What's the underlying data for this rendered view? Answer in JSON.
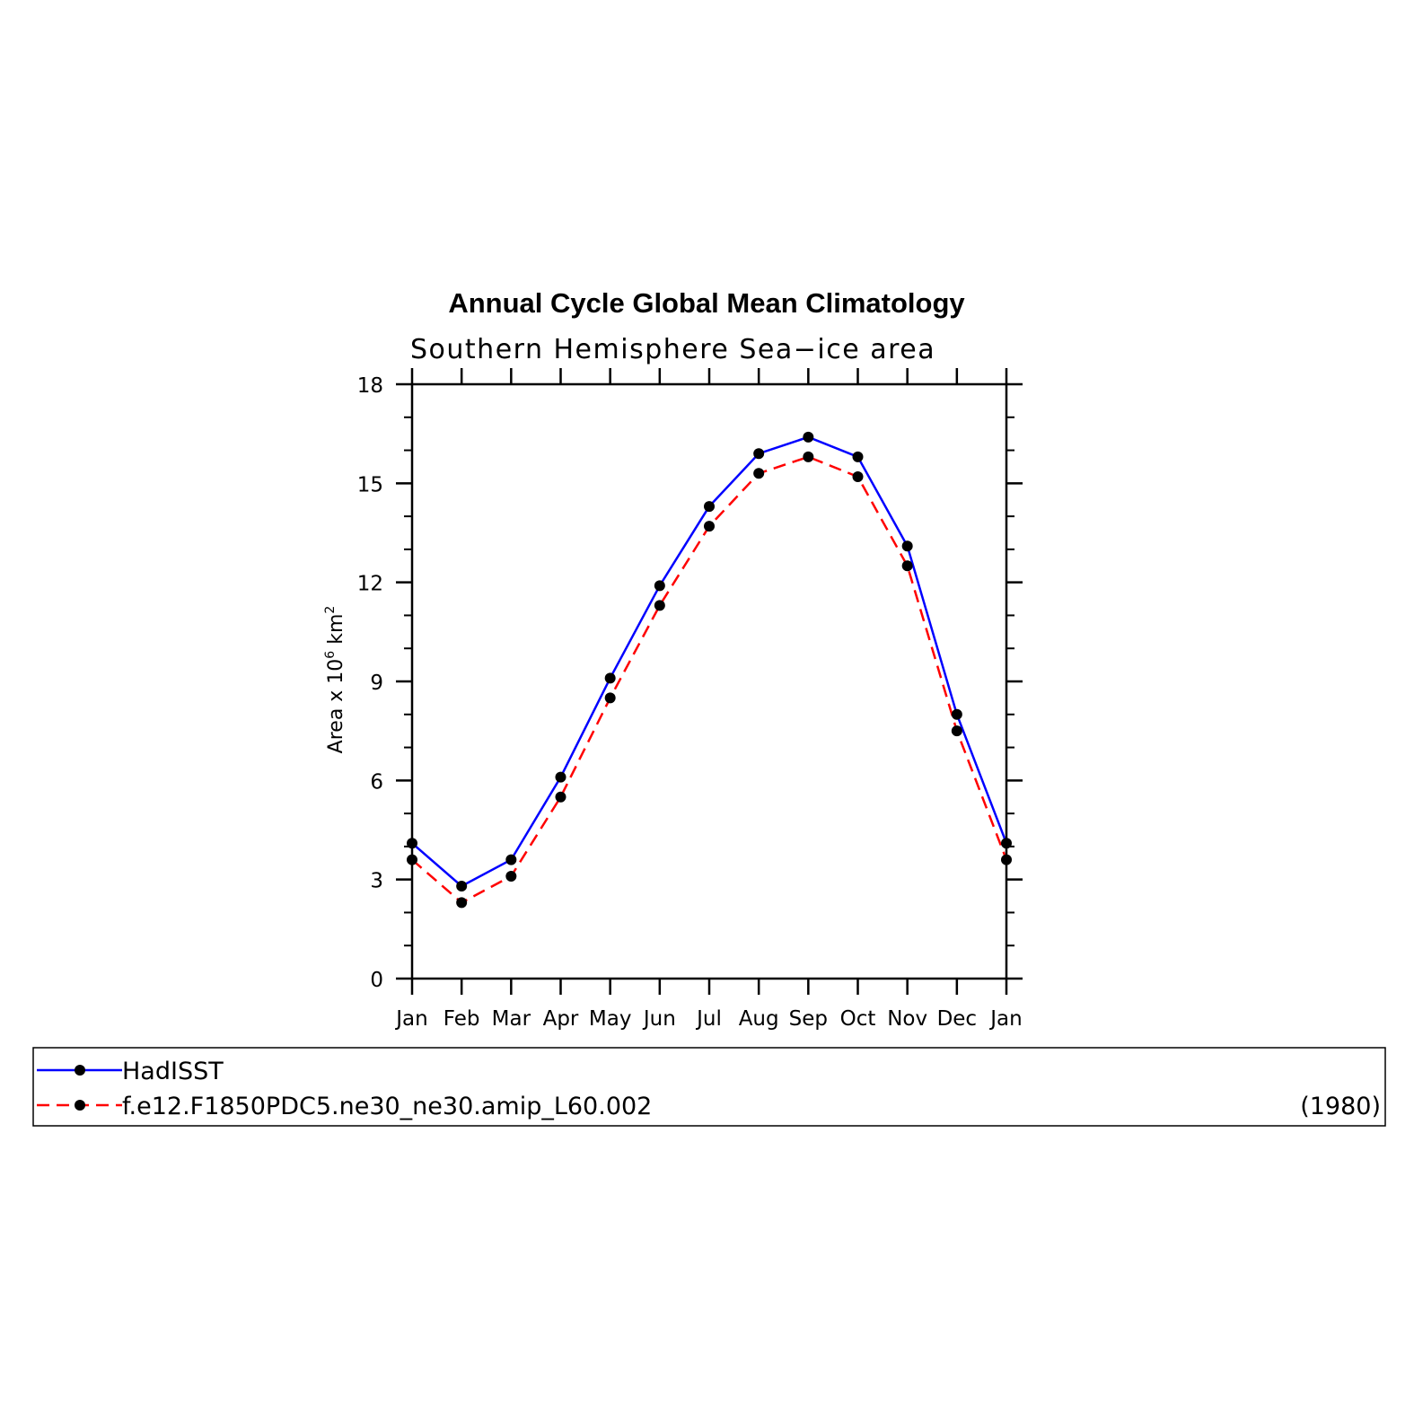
{
  "chart_data": {
    "type": "line",
    "title": "Annual Cycle Global Mean Climatology",
    "subtitle": "Southern Hemisphere Sea−ice area",
    "ylabel": {
      "prefix": "Area x 10",
      "exp1": "6",
      "middle": " km",
      "exp2": "2"
    },
    "xlabel": "",
    "categories": [
      "Jan",
      "Feb",
      "Mar",
      "Apr",
      "May",
      "Jun",
      "Jul",
      "Aug",
      "Sep",
      "Oct",
      "Nov",
      "Dec",
      "Jan"
    ],
    "ylim": [
      0,
      18
    ],
    "yticks": [
      0,
      3,
      6,
      9,
      12,
      15,
      18
    ],
    "grid": false,
    "legend_position": "bottom",
    "series": [
      {
        "name": "HadISST",
        "color": "#0000ff",
        "dash": "solid",
        "marker": "filled-circle",
        "values": [
          4.1,
          2.8,
          3.6,
          6.1,
          9.1,
          11.9,
          14.3,
          15.9,
          16.4,
          15.8,
          13.1,
          8.0,
          4.1
        ]
      },
      {
        "name": "f.e12.F1850PDC5.ne30_ne30.amip_L60.002",
        "color": "#ff0000",
        "dash": "dashed",
        "marker": "filled-circle",
        "values": [
          3.6,
          2.3,
          3.1,
          5.5,
          8.5,
          11.3,
          13.7,
          15.3,
          15.8,
          15.2,
          12.5,
          7.5,
          3.6
        ]
      }
    ],
    "legend_note": "(1980)"
  }
}
